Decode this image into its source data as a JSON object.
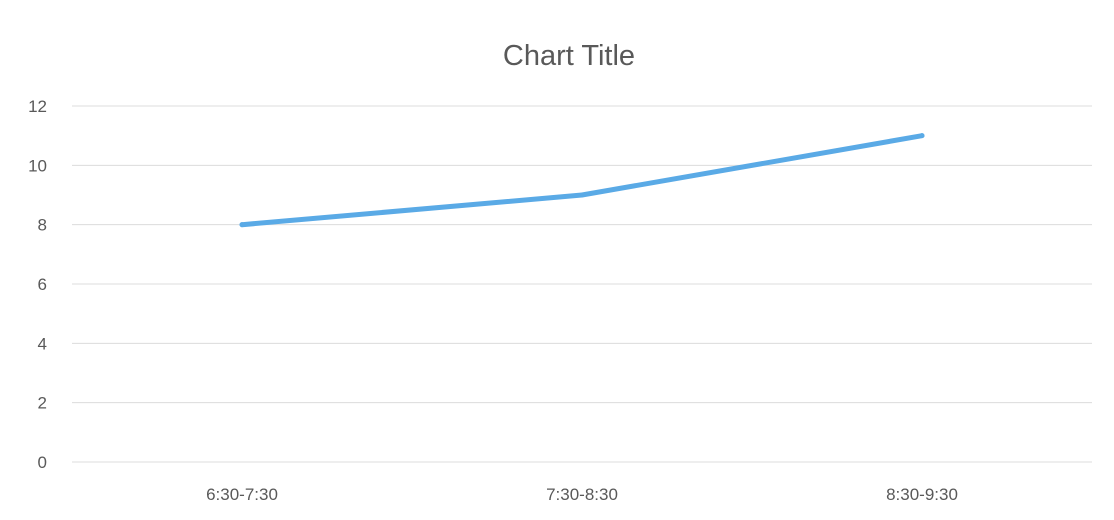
{
  "chart_data": {
    "type": "line",
    "title": "Chart Title",
    "xlabel": "",
    "ylabel": "",
    "categories": [
      "6:30-7:30",
      "7:30-8:30",
      "8:30-9:30"
    ],
    "series": [
      {
        "values": [
          8,
          9,
          11
        ]
      }
    ],
    "ylim": [
      0,
      12
    ],
    "yticks": [
      0,
      2,
      4,
      6,
      8,
      10,
      12
    ],
    "grid": true,
    "legend": "none",
    "colors": {
      "line": "#5aaae6",
      "grid": "#dcdcdc",
      "text": "#595959"
    }
  }
}
